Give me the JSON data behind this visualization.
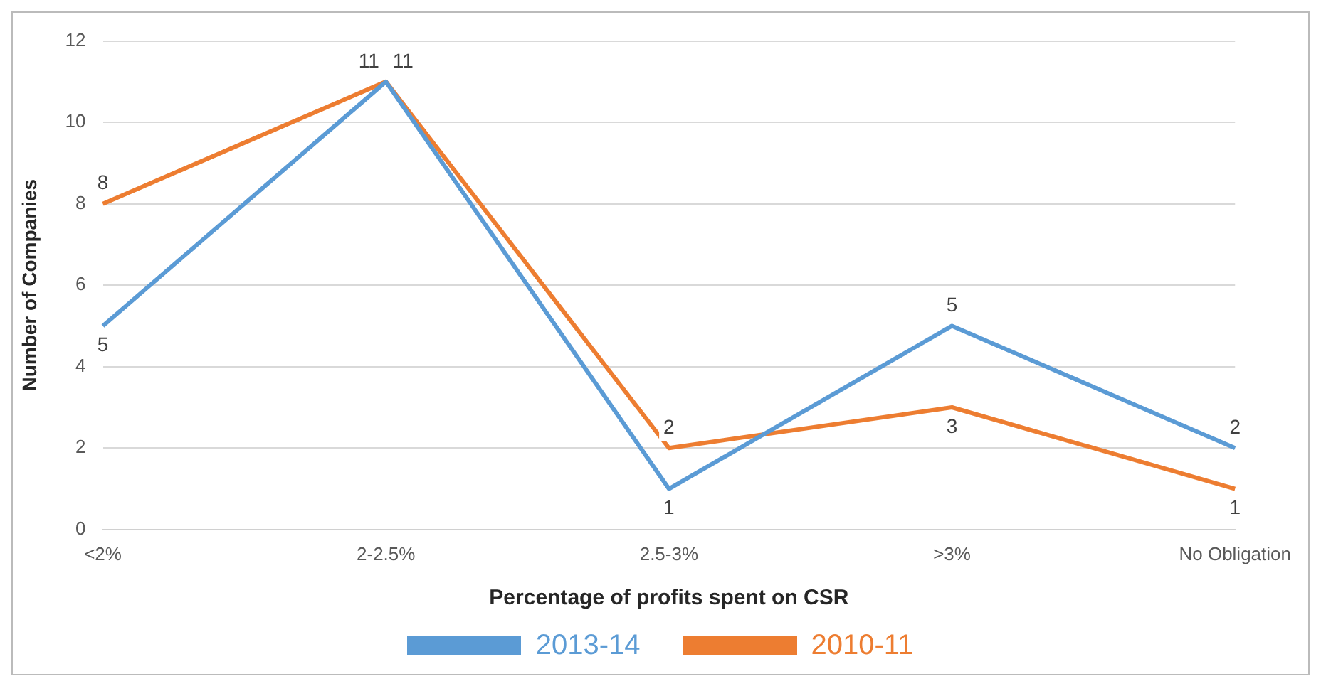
{
  "chart_data": {
    "type": "line",
    "xlabel": "Percentage of profits spent on CSR",
    "ylabel": "Number of Companies",
    "categories": [
      "<2%",
      "2-2.5%",
      "2.5-3%",
      ">3%",
      "No Obligation"
    ],
    "series": [
      {
        "name": "2013-14",
        "color": "#5b9bd5",
        "values": [
          5,
          11,
          1,
          5,
          2
        ]
      },
      {
        "name": "2010-11",
        "color": "#ed7d31",
        "values": [
          8,
          11,
          2,
          3,
          1
        ]
      }
    ],
    "ylim": [
      0,
      12
    ],
    "yticks": [
      0,
      2,
      4,
      6,
      8,
      10,
      12
    ],
    "grid": "y",
    "legend": "bottom",
    "data_labels": true,
    "marker": "none",
    "line_style": "solid"
  }
}
